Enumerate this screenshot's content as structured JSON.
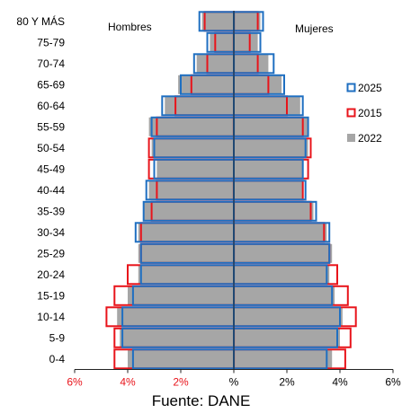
{
  "chart_data": {
    "type": "bar",
    "subtype": "population-pyramid",
    "categories": [
      "80 Y MÁS",
      "75-79",
      "70-74",
      "65-69",
      "60-64",
      "55-59",
      "50-54",
      "45-49",
      "40-44",
      "35-39",
      "30-34",
      "25-29",
      "20-24",
      "15-19",
      "10-14",
      "5-9",
      "0-4"
    ],
    "left_label": "Hombres",
    "right_label": "Mujeres",
    "xlim": [
      -6,
      6
    ],
    "x_ticks": [
      "6%",
      "4%",
      "2%",
      "%",
      "2%",
      "4%",
      "6%"
    ],
    "series": [
      {
        "name": "2025",
        "style": "outline",
        "color": "#1f6fc1",
        "men": [
          1.3,
          1.0,
          1.5,
          2.0,
          2.7,
          3.1,
          3.0,
          3.0,
          3.3,
          3.4,
          3.7,
          3.5,
          3.5,
          3.8,
          4.2,
          4.2,
          3.8
        ],
        "women": [
          1.1,
          1.0,
          1.5,
          1.9,
          2.6,
          2.8,
          2.7,
          2.6,
          2.7,
          3.1,
          3.6,
          3.6,
          3.5,
          3.7,
          4.0,
          3.9,
          3.5
        ]
      },
      {
        "name": "2015",
        "style": "outline",
        "color": "#e8141b",
        "men": [
          1.1,
          0.7,
          1.0,
          1.6,
          2.2,
          2.9,
          3.2,
          3.2,
          2.9,
          3.1,
          3.5,
          3.5,
          4.0,
          4.5,
          4.8,
          4.5,
          4.5
        ],
        "women": [
          0.9,
          0.6,
          0.9,
          1.3,
          2.0,
          2.6,
          2.9,
          2.8,
          2.6,
          2.9,
          3.4,
          3.6,
          3.9,
          4.3,
          4.6,
          4.4,
          4.2
        ]
      },
      {
        "name": "2022",
        "style": "fill",
        "color": "#a6a6a6",
        "men": [
          1.2,
          0.9,
          1.4,
          2.1,
          2.6,
          3.2,
          3.1,
          2.9,
          3.2,
          3.4,
          3.6,
          3.6,
          3.6,
          4.0,
          4.4,
          4.3,
          4.0
        ],
        "women": [
          1.0,
          0.9,
          1.3,
          1.8,
          2.5,
          2.8,
          2.8,
          2.6,
          2.6,
          3.0,
          3.5,
          3.7,
          3.6,
          3.8,
          4.1,
          4.0,
          3.7
        ]
      }
    ],
    "legend": [
      "2025",
      "2015",
      "2022"
    ],
    "legend_position": "right",
    "grid": false
  },
  "source": "Fuente: DANE",
  "colors": {
    "tick_side": "#e8141b",
    "tick_center": "#000000"
  }
}
